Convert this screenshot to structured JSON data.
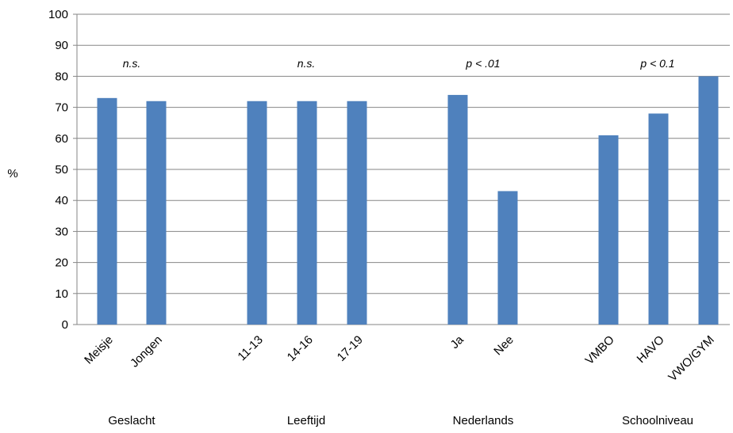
{
  "chart_data": {
    "type": "bar",
    "ylabel": "%",
    "xlabel": "",
    "title": "",
    "ylim": [
      0,
      100
    ],
    "yticks": [
      0,
      10,
      20,
      30,
      40,
      50,
      60,
      70,
      80,
      90,
      100
    ],
    "grid": true,
    "legend": "none",
    "bar_color": "#4F81BD",
    "grid_color": "#868686",
    "categories": [
      "Meisje",
      "Jongen",
      "11-13",
      "14-16",
      "17-19",
      "Ja",
      "Nee",
      "VMBO",
      "HAVO",
      "VWO/GYM"
    ],
    "values": [
      73,
      72,
      72,
      72,
      72,
      74,
      43,
      61,
      68,
      80
    ],
    "groups": [
      {
        "name": "Geslacht",
        "significance": "n.s.",
        "categories": [
          "Meisje",
          "Jongen"
        ]
      },
      {
        "name": "Leeftijd",
        "significance": "n.s.",
        "categories": [
          "11-13",
          "14-16",
          "17-19"
        ]
      },
      {
        "name": "Nederlands",
        "significance": "p < .01",
        "categories": [
          "Ja",
          "Nee"
        ]
      },
      {
        "name": "Schoolniveau",
        "significance": "p < 0.1",
        "categories": [
          "VMBO",
          "HAVO",
          "VWO/GYM"
        ]
      }
    ]
  }
}
